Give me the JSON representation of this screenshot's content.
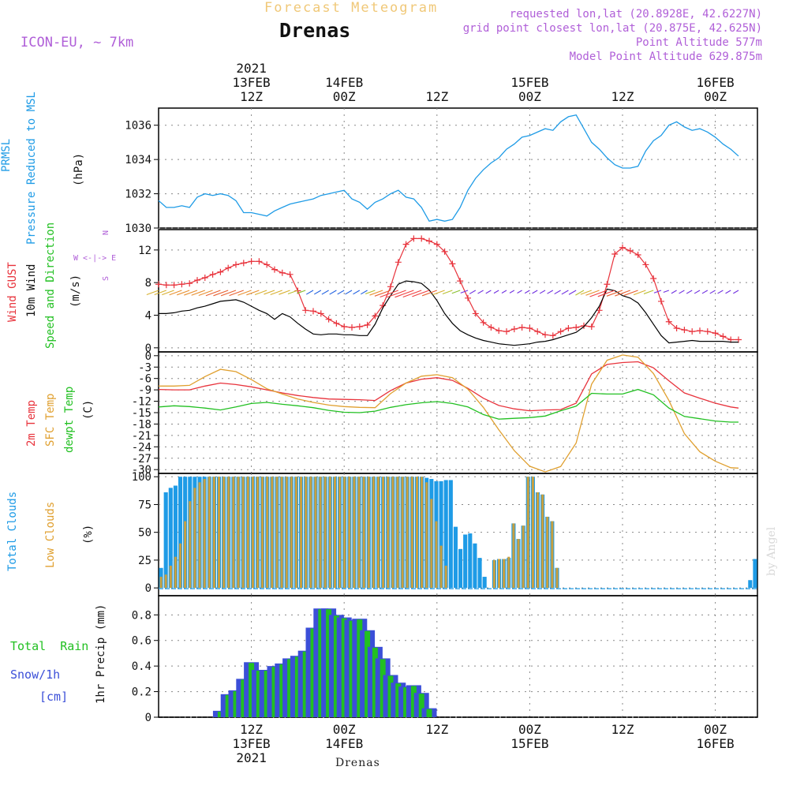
{
  "header": {
    "title": "Drenas",
    "subtitle": "Forecast Meteogram",
    "model": "ICON-EU, ~ 7km",
    "info": [
      "requested lon,lat (20.8928E, 42.6227N)",
      "grid point closest lon,lat (20.875E, 42.625N)",
      "Point Altitude 577m",
      "Model Point Altitude 629.875m"
    ],
    "watermark": "by Angel",
    "footer": "Drenas"
  },
  "colors": {
    "pressure": "#1e9be6",
    "gust": "#e8333c",
    "wind": "#000000",
    "temp2m": "#e8333c",
    "sfc": "#e0a030",
    "dewpt": "#22c022",
    "total_cloud": "#1e9be6",
    "low_cloud": "#c8a040",
    "rain": "#22c022",
    "snow": "#3b4fd8",
    "purple": "#b05fd8"
  },
  "time_axis": {
    "top": [
      {
        "t": 12,
        "lines": [
          "2021",
          "13FEB",
          "12Z"
        ]
      },
      {
        "t": 24,
        "lines": [
          "14FEB",
          "00Z"
        ]
      },
      {
        "t": 36,
        "lines": [
          "12Z"
        ]
      },
      {
        "t": 48,
        "lines": [
          "15FEB",
          "00Z"
        ]
      },
      {
        "t": 60,
        "lines": [
          "12Z"
        ]
      },
      {
        "t": 72,
        "lines": [
          "16FEB",
          "00Z"
        ]
      }
    ],
    "bottom": [
      {
        "t": 12,
        "lines": [
          "12Z",
          "13FEB",
          "2021"
        ]
      },
      {
        "t": 24,
        "lines": [
          "00Z",
          "14FEB"
        ]
      },
      {
        "t": 36,
        "lines": [
          "12Z"
        ]
      },
      {
        "t": 48,
        "lines": [
          "00Z",
          "15FEB"
        ]
      },
      {
        "t": 60,
        "lines": [
          "12Z"
        ]
      },
      {
        "t": 72,
        "lines": [
          "00Z",
          "16FEB"
        ]
      }
    ]
  },
  "panel_labels": {
    "pressure": [
      "PRMSL",
      "Pressure Reduced to MSL",
      "(hPa)"
    ],
    "wind": [
      "Wind GUST",
      "10m Wind",
      "Speed and Direction",
      "(m/s)"
    ],
    "compass": [
      "N",
      "W <-|-> E",
      "S"
    ],
    "temp": [
      "2m Temp",
      "SFC Temp",
      "dewpt Temp",
      "(C)"
    ],
    "cloud": [
      "Total Clouds",
      "Low Clouds",
      "(%)"
    ],
    "precip": [
      "Total  Rain",
      "Snow/1h",
      "[cm]",
      "1hr Precip (mm)"
    ]
  },
  "chart_data": [
    {
      "type": "line",
      "name": "pressure",
      "ylabel": "(hPa)",
      "ylim": [
        1030,
        1037
      ],
      "yticks": [
        1030,
        1032,
        1034,
        1036
      ],
      "x": [
        0,
        1,
        2,
        3,
        4,
        5,
        6,
        7,
        8,
        9,
        10,
        11,
        12,
        13,
        14,
        15,
        16,
        17,
        18,
        19,
        20,
        21,
        22,
        23,
        24,
        25,
        26,
        27,
        28,
        29,
        30,
        31,
        32,
        33,
        34,
        35,
        36,
        37,
        38,
        39,
        40,
        41,
        42,
        43,
        44,
        45,
        46,
        47,
        48,
        49,
        50,
        51,
        52,
        53,
        54,
        55,
        56,
        57,
        58,
        59,
        60,
        61,
        62,
        63,
        64,
        65,
        66,
        67,
        68,
        69,
        70,
        71,
        72,
        73,
        74,
        75
      ],
      "series": [
        {
          "name": "PRMSL",
          "values": [
            1031.6,
            1031.2,
            1031.2,
            1031.3,
            1031.2,
            1031.8,
            1032.0,
            1031.9,
            1032.0,
            1031.9,
            1031.6,
            1030.9,
            1030.9,
            1030.8,
            1030.7,
            1031.0,
            1031.2,
            1031.4,
            1031.5,
            1031.6,
            1031.7,
            1031.9,
            1032.0,
            1032.1,
            1032.2,
            1031.7,
            1031.5,
            1031.1,
            1031.5,
            1031.7,
            1032.0,
            1032.2,
            1031.8,
            1031.7,
            1031.2,
            1030.4,
            1030.5,
            1030.4,
            1030.5,
            1031.2,
            1032.2,
            1032.9,
            1033.4,
            1033.8,
            1034.1,
            1034.6,
            1034.9,
            1035.3,
            1035.4,
            1035.6,
            1035.8,
            1035.7,
            1036.2,
            1036.5,
            1036.6,
            1035.8,
            1035.0,
            1034.6,
            1034.1,
            1033.7,
            1033.5,
            1033.5,
            1033.6,
            1034.5,
            1035.1,
            1035.4,
            1036.0,
            1036.2,
            1035.9,
            1035.7,
            1035.8,
            1035.6,
            1035.3,
            1034.9,
            1034.6,
            1034.2
          ]
        }
      ]
    },
    {
      "type": "line",
      "name": "wind",
      "ylabel": "(m/s)",
      "ylim": [
        -0.5,
        14.5
      ],
      "yticks": [
        0,
        4,
        8,
        12
      ],
      "x": [
        0,
        1,
        2,
        3,
        4,
        5,
        6,
        7,
        8,
        9,
        10,
        11,
        12,
        13,
        14,
        15,
        16,
        17,
        18,
        19,
        20,
        21,
        22,
        23,
        24,
        25,
        26,
        27,
        28,
        29,
        30,
        31,
        32,
        33,
        34,
        35,
        36,
        37,
        38,
        39,
        40,
        41,
        42,
        43,
        44,
        45,
        46,
        47,
        48,
        49,
        50,
        51,
        52,
        53,
        54,
        55,
        56,
        57,
        58,
        59,
        60,
        61,
        62,
        63,
        64,
        65,
        66,
        67,
        68,
        69,
        70,
        71,
        72,
        73,
        74,
        75
      ],
      "series": [
        {
          "name": "Wind GUST",
          "values": [
            7.8,
            7.7,
            7.7,
            7.8,
            7.9,
            8.3,
            8.6,
            9.0,
            9.3,
            9.8,
            10.2,
            10.4,
            10.6,
            10.6,
            10.2,
            9.6,
            9.2,
            9.0,
            7.0,
            4.6,
            4.5,
            4.2,
            3.5,
            3.0,
            2.6,
            2.5,
            2.6,
            2.8,
            3.9,
            5.2,
            7.5,
            10.5,
            12.7,
            13.4,
            13.4,
            13.1,
            12.7,
            11.8,
            10.3,
            8.2,
            6.1,
            4.2,
            3.1,
            2.5,
            2.1,
            2.0,
            2.3,
            2.5,
            2.4,
            2.0,
            1.6,
            1.5,
            2.0,
            2.4,
            2.5,
            2.7,
            2.6,
            4.6,
            7.8,
            11.5,
            12.3,
            11.9,
            11.4,
            10.2,
            8.5,
            5.7,
            3.2,
            2.4,
            2.2,
            2.0,
            2.1,
            2.0,
            1.8,
            1.4,
            1.0,
            1.0
          ]
        },
        {
          "name": "10m Wind",
          "values": [
            4.2,
            4.2,
            4.3,
            4.5,
            4.6,
            4.9,
            5.1,
            5.4,
            5.7,
            5.8,
            5.9,
            5.6,
            5.1,
            4.6,
            4.2,
            3.5,
            4.2,
            3.8,
            3.0,
            2.3,
            1.7,
            1.6,
            1.7,
            1.7,
            1.6,
            1.6,
            1.5,
            1.5,
            2.9,
            4.9,
            6.4,
            7.8,
            8.2,
            8.1,
            7.9,
            7.1,
            5.8,
            4.2,
            3.0,
            2.1,
            1.6,
            1.2,
            0.9,
            0.7,
            0.5,
            0.4,
            0.3,
            0.4,
            0.5,
            0.7,
            0.8,
            1.0,
            1.3,
            1.6,
            1.9,
            2.6,
            3.7,
            5.1,
            7.2,
            7.0,
            6.4,
            6.1,
            5.5,
            4.3,
            2.9,
            1.5,
            0.6,
            0.7,
            0.8,
            0.9,
            0.8,
            0.8,
            0.8,
            0.8,
            0.7,
            0.7
          ]
        }
      ]
    },
    {
      "type": "line",
      "name": "temperature",
      "ylabel": "(C)",
      "ylim": [
        -31,
        1
      ],
      "yticks": [
        0,
        -3,
        -6,
        -9,
        -12,
        -15,
        -18,
        -21,
        -24,
        -27,
        -30
      ],
      "x": [
        0,
        2,
        4,
        6,
        8,
        10,
        12,
        14,
        16,
        18,
        20,
        22,
        24,
        26,
        28,
        30,
        32,
        34,
        36,
        38,
        40,
        42,
        44,
        46,
        48,
        50,
        52,
        54,
        56,
        58,
        60,
        62,
        64,
        66,
        68,
        70,
        72,
        74,
        75
      ],
      "series": [
        {
          "name": "2m Temp",
          "values": [
            -8.9,
            -9.0,
            -9.0,
            -8.0,
            -7.2,
            -7.6,
            -8.2,
            -9.0,
            -9.8,
            -10.5,
            -11.0,
            -11.4,
            -11.5,
            -11.6,
            -11.8,
            -9.2,
            -7.2,
            -6.2,
            -5.8,
            -6.5,
            -8.6,
            -11.2,
            -13.1,
            -14.0,
            -14.5,
            -14.3,
            -14.2,
            -12.5,
            -4.8,
            -2.3,
            -1.8,
            -1.6,
            -3.2,
            -6.6,
            -9.8,
            -11.2,
            -12.5,
            -13.5,
            -13.8
          ]
        },
        {
          "name": "SFC Temp",
          "values": [
            -8.0,
            -8.0,
            -7.8,
            -5.5,
            -3.6,
            -4.2,
            -6.3,
            -8.7,
            -10.1,
            -11.4,
            -12.3,
            -13.0,
            -13.4,
            -13.6,
            -13.7,
            -10.0,
            -7.2,
            -5.4,
            -5.0,
            -5.8,
            -8.8,
            -13.6,
            -19.5,
            -25.0,
            -29.1,
            -30.6,
            -29.2,
            -23.0,
            -7.5,
            -1.2,
            0.2,
            -0.4,
            -4.7,
            -11.8,
            -20.5,
            -25.3,
            -27.8,
            -29.5,
            -29.6
          ]
        },
        {
          "name": "dewpt Temp",
          "values": [
            -13.5,
            -13.2,
            -13.4,
            -13.8,
            -14.3,
            -13.5,
            -12.6,
            -12.3,
            -12.8,
            -13.2,
            -13.7,
            -14.4,
            -14.9,
            -15.0,
            -14.6,
            -13.6,
            -12.9,
            -12.4,
            -12.1,
            -12.6,
            -13.5,
            -15.5,
            -16.7,
            -16.5,
            -16.3,
            -15.9,
            -14.5,
            -13.3,
            -9.9,
            -10.1,
            -10.1,
            -8.9,
            -10.3,
            -13.8,
            -16.0,
            -16.6,
            -17.2,
            -17.5,
            -17.5
          ]
        }
      ]
    },
    {
      "type": "bar",
      "name": "clouds",
      "ylabel": "(%)",
      "ylim": [
        -7,
        103
      ],
      "yticks": [
        0,
        25,
        50,
        75,
        100
      ],
      "series": [
        {
          "name": "Total Clouds",
          "values": [
            18,
            86,
            90,
            92,
            100,
            100,
            100,
            100,
            100,
            100,
            100,
            100,
            100,
            100,
            100,
            100,
            100,
            100,
            100,
            100,
            100,
            100,
            100,
            100,
            100,
            100,
            100,
            100,
            100,
            100,
            100,
            100,
            100,
            100,
            100,
            100,
            100,
            100,
            100,
            100,
            100,
            100,
            100,
            100,
            100,
            100,
            100,
            100,
            100,
            100,
            100,
            100,
            100,
            100,
            100,
            99,
            98,
            96,
            96,
            97,
            97,
            55,
            35,
            48,
            49,
            40,
            27,
            10,
            0,
            25,
            26,
            26,
            27,
            58,
            44,
            56,
            100,
            100,
            86,
            84,
            64,
            60,
            18,
            0,
            0,
            0,
            0,
            0,
            0,
            0,
            0,
            0,
            0,
            0,
            0,
            0,
            0,
            0,
            0,
            0,
            0,
            0,
            0,
            0,
            0,
            0,
            0,
            0,
            0,
            0,
            0,
            0,
            0,
            0,
            0,
            0,
            0,
            0,
            0,
            0,
            0,
            0,
            7,
            26
          ]
        },
        {
          "name": "Low Clouds",
          "values": [
            10,
            12,
            20,
            28,
            40,
            60,
            78,
            90,
            95,
            98,
            100,
            100,
            100,
            100,
            100,
            100,
            100,
            100,
            100,
            100,
            100,
            100,
            100,
            100,
            100,
            100,
            100,
            100,
            100,
            100,
            100,
            100,
            100,
            100,
            100,
            100,
            100,
            100,
            100,
            100,
            100,
            100,
            100,
            100,
            100,
            100,
            100,
            100,
            100,
            100,
            100,
            100,
            100,
            100,
            100,
            95,
            80,
            60,
            38,
            20,
            0,
            0,
            0,
            0,
            0,
            0,
            0,
            0,
            0,
            25,
            26,
            26,
            28,
            58,
            44,
            56,
            100,
            100,
            86,
            84,
            64,
            60,
            18,
            0,
            0,
            0,
            0,
            0,
            0,
            0,
            0,
            0,
            0,
            0,
            0,
            0,
            0,
            0,
            0,
            0,
            0,
            0,
            0,
            0,
            0,
            0,
            0,
            0,
            0,
            0,
            0,
            0,
            0,
            0,
            0,
            0,
            0,
            0,
            0,
            0,
            0,
            0,
            0,
            0
          ]
        }
      ]
    },
    {
      "type": "bar",
      "name": "precip",
      "ylabel": "1hr Precip (mm)",
      "ylim": [
        0,
        0.95
      ],
      "yticks": [
        0,
        0.2,
        0.4,
        0.6,
        0.8
      ],
      "x": [
        8,
        9,
        10,
        11,
        12,
        13,
        14,
        15,
        16,
        17,
        18,
        19,
        20,
        21,
        22,
        23,
        24,
        25,
        26,
        27,
        28,
        29,
        30,
        31,
        32,
        33,
        34,
        35,
        36
      ],
      "series": [
        {
          "name": "Total Rain",
          "values": [
            0.05,
            0.18,
            0.21,
            0.3,
            0.43,
            0.37,
            0.37,
            0.4,
            0.42,
            0.46,
            0.48,
            0.52,
            0.7,
            0.85,
            0.85,
            0.8,
            0.78,
            0.76,
            0.77,
            0.68,
            0.55,
            0.46,
            0.33,
            0.27,
            0.24,
            0.25,
            0.19,
            0.07,
            0.0
          ]
        }
      ]
    }
  ]
}
